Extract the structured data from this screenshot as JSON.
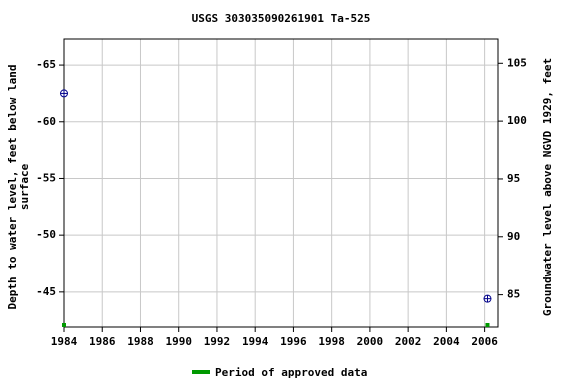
{
  "chart_data": {
    "type": "scatter",
    "title": "USGS 303035090261901 Ta-525",
    "ylabel": [
      "Depth to water level, feet below land",
      "surface"
    ],
    "y2label": "Groundwater level above NGVD 1929, feet",
    "xlim": [
      1984,
      2006.7
    ],
    "xticks": [
      1984,
      1986,
      1988,
      1990,
      1992,
      1994,
      1996,
      1998,
      2000,
      2002,
      2004,
      2006
    ],
    "ylim": [
      -41.9,
      -67.3
    ],
    "yticks": [
      -65,
      -60,
      -55,
      -50,
      -45
    ],
    "y2lim": [
      82.2,
      107.1
    ],
    "y2ticks": [
      85,
      90,
      95,
      100,
      105
    ],
    "grid": true,
    "series": [
      {
        "color": "#00008b",
        "x": [
          1984.0,
          2006.15
        ],
        "values": [
          -62.5,
          -44.4
        ]
      }
    ],
    "approved_period": {
      "name": "Period of approved data",
      "color": "#009900",
      "x": [
        1984.0,
        2006.15
      ]
    }
  }
}
